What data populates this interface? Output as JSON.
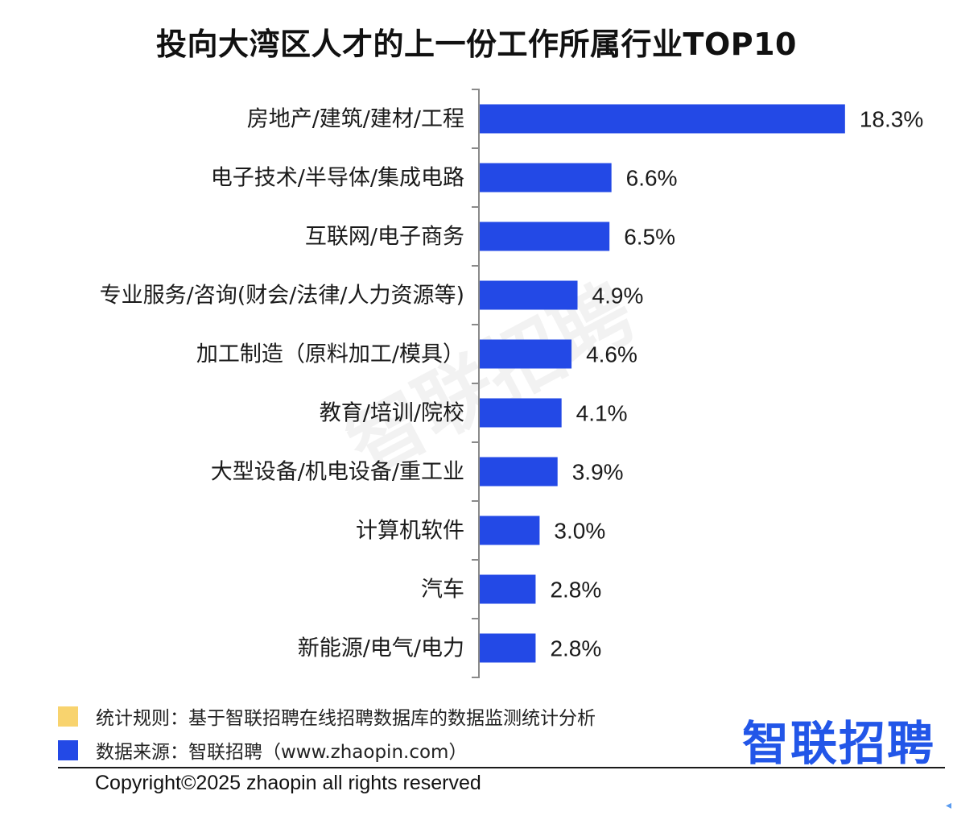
{
  "chart_data": {
    "type": "bar",
    "orientation": "horizontal",
    "title": "投向大湾区人才的上一份工作所属行业TOP10",
    "categories": [
      "房地产/建筑/建材/工程",
      "电子技术/半导体/集成电路",
      "互联网/电子商务",
      "专业服务/咨询(财会/法律/人力资源等)",
      "加工制造（原料加工/模具）",
      "教育/培训/院校",
      "大型设备/机电设备/重工业",
      "计算机软件",
      "汽车",
      "新能源/电气/电力"
    ],
    "values": [
      18.3,
      6.6,
      6.5,
      4.9,
      4.6,
      4.1,
      3.9,
      3.0,
      2.8,
      2.8
    ],
    "value_labels": [
      "18.3%",
      "6.6%",
      "6.5%",
      "4.9%",
      "4.6%",
      "4.1%",
      "3.9%",
      "3.0%",
      "2.8%",
      "2.8%"
    ],
    "unit": "%",
    "bar_color": "#2349e6",
    "grid": false,
    "legend": "none"
  },
  "watermark": "智联招聘",
  "footer": {
    "rule_color": "#f8d36e",
    "rule_text": "统计规则：基于智联招聘在线招聘数据库的数据监测统计分析",
    "source_color": "#2349e6",
    "source_text": "数据来源：智联招聘（www.zhaopin.com）",
    "logo_text": "智联招聘",
    "copyright": "Copyright©2025 zhaopin all rights reserved"
  }
}
